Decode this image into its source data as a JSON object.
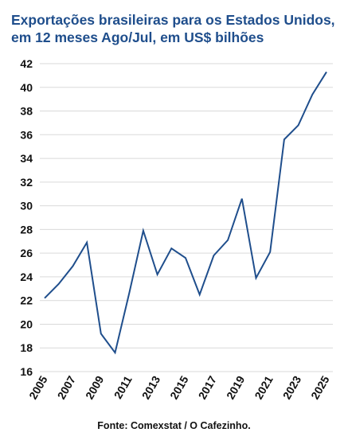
{
  "chart_data": {
    "type": "line",
    "title": "Exportações brasileiras para os Estados Unidos,",
    "subtitle": "em 12 meses Ago/Jul, em US$ bilhões",
    "x": [
      "2005",
      "2006",
      "2007",
      "2008",
      "2009",
      "2010",
      "2011",
      "2012",
      "2013",
      "2014",
      "2015",
      "2016",
      "2017",
      "2018",
      "2019",
      "2020",
      "2021",
      "2022",
      "2023",
      "2024",
      "2025"
    ],
    "xtick_labels": [
      "2005",
      "2007",
      "2009",
      "2011",
      "2013",
      "2015",
      "2017",
      "2019",
      "2021",
      "2023",
      "2025"
    ],
    "series": [
      {
        "values": [
          22.2,
          23.4,
          24.9,
          26.9,
          19.2,
          17.6,
          22.6,
          27.9,
          24.2,
          26.4,
          25.6,
          22.5,
          25.8,
          27.1,
          30.6,
          23.9,
          26.1,
          35.6,
          36.8,
          39.4,
          41.3
        ]
      }
    ],
    "ylim": [
      16,
      42
    ],
    "yticks": [
      16,
      18,
      20,
      22,
      24,
      26,
      28,
      30,
      32,
      34,
      36,
      38,
      40,
      42
    ],
    "grid": true,
    "legend": "none",
    "xlabel": "",
    "ylabel": "",
    "source": "Fonte: Comexstat / O Cafezinho.",
    "colors": {
      "title": "#1f4e8c",
      "line": "#1f4e8c",
      "grid": "#d9d9d9",
      "text": "#111111"
    }
  }
}
